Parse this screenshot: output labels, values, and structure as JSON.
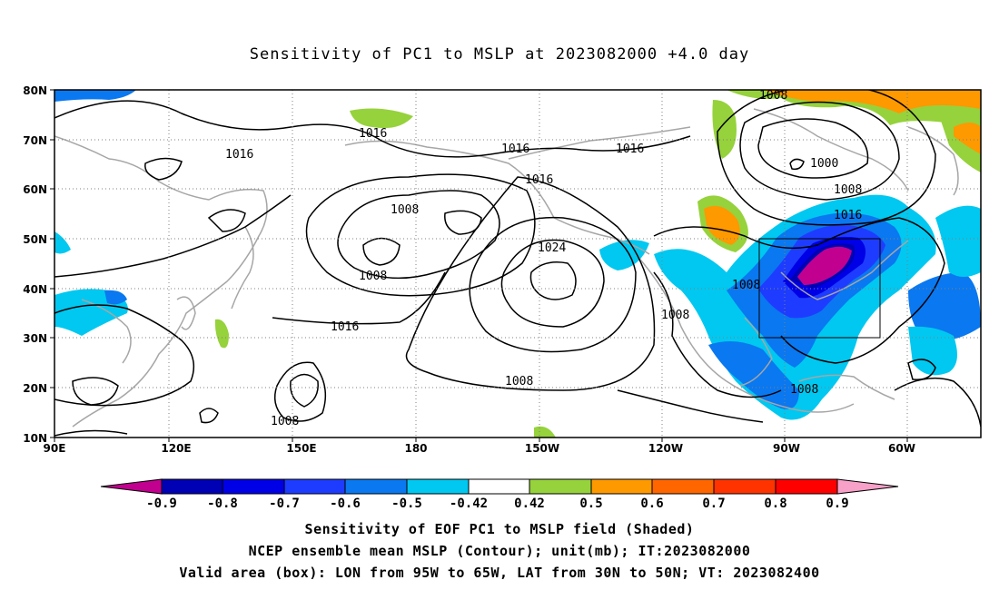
{
  "title": "Sensitivity of PC1 to MSLP at 2023082000 +4.0 day",
  "lat_ticks": [
    "80N",
    "70N",
    "60N",
    "50N",
    "40N",
    "30N",
    "20N",
    "10N"
  ],
  "lon_ticks": [
    "90E",
    "120E",
    "150E",
    "180",
    "150W",
    "120W",
    "90W",
    "60W"
  ],
  "contour_labels": [
    "1008",
    "1016",
    "1000",
    "1008",
    "1016",
    "1016",
    "1016",
    "1016",
    "1008",
    "1008",
    "1024",
    "1016",
    "1008",
    "1008",
    "1016",
    "1008",
    "1008",
    "1008"
  ],
  "colorbar": {
    "labels": [
      "-0.9",
      "-0.8",
      "-0.7",
      "-0.6",
      "-0.5",
      "-0.42",
      "0.42",
      "0.5",
      "0.6",
      "0.7",
      "0.8",
      "0.9"
    ],
    "colors": [
      "#c2008f",
      "#0000b4",
      "#0000e6",
      "#1e3cff",
      "#0a78f0",
      "#00c8f0",
      "#ffffff",
      "#96d23c",
      "#ff9900",
      "#ff6600",
      "#ff3300",
      "#ff0000",
      "#f7a0c8"
    ]
  },
  "captions": {
    "line1": "Sensitivity of EOF PC1 to MSLP field (Shaded)",
    "line2": "NCEP ensemble mean MSLP (Contour); unit(mb); IT:2023082000",
    "line3": "Valid area (box): LON from 95W to 65W, LAT from 30N to 50N; VT: 2023082400"
  }
}
